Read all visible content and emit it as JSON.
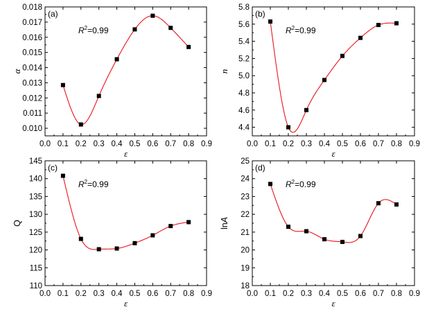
{
  "chart_data": [
    {
      "type": "scatter",
      "panel": "(a)",
      "annotation_prefix": "R",
      "annotation_sup": "2",
      "annotation_suffix": "=0.99",
      "xlabel": "ε",
      "ylabel": "α",
      "xlim": [
        0.0,
        0.9
      ],
      "ylim": [
        0.0095,
        0.018
      ],
      "xticks": [
        "0.0",
        "0.1",
        "0.2",
        "0.3",
        "0.4",
        "0.5",
        "0.6",
        "0.7",
        "0.8",
        "0.9"
      ],
      "yticks": [
        "0.010",
        "0.011",
        "0.012",
        "0.013",
        "0.014",
        "0.015",
        "0.016",
        "0.017",
        "0.018"
      ],
      "x": [
        0.1,
        0.2,
        0.3,
        0.4,
        0.5,
        0.6,
        0.7,
        0.8
      ],
      "y": [
        0.01285,
        0.01025,
        0.01213,
        0.01455,
        0.01652,
        0.01742,
        0.01662,
        0.01536
      ],
      "fit_color": "#e8141b",
      "marker_color": "#000000"
    },
    {
      "type": "scatter",
      "panel": "(b)",
      "annotation_prefix": "R",
      "annotation_sup": "2",
      "annotation_suffix": "=0.99",
      "xlabel": "ε",
      "ylabel": "n",
      "xlim": [
        0.0,
        0.9
      ],
      "ylim": [
        4.3,
        5.8
      ],
      "xticks": [
        "0.0",
        "0.1",
        "0.2",
        "0.3",
        "0.4",
        "0.5",
        "0.6",
        "0.7",
        "0.8",
        "0.9"
      ],
      "yticks": [
        "4.4",
        "4.6",
        "4.8",
        "5.0",
        "5.2",
        "5.4",
        "5.6",
        "5.8"
      ],
      "x": [
        0.1,
        0.2,
        0.3,
        0.4,
        0.5,
        0.6,
        0.7,
        0.8
      ],
      "y": [
        5.63,
        4.4,
        4.6,
        4.95,
        5.23,
        5.44,
        5.59,
        5.61
      ],
      "fit_color": "#e8141b",
      "marker_color": "#000000"
    },
    {
      "type": "scatter",
      "panel": "(c)",
      "annotation_prefix": "R",
      "annotation_sup": "2",
      "annotation_suffix": "=0.99",
      "xlabel": "ε",
      "ylabel": "Q",
      "xlim": [
        0.0,
        0.9
      ],
      "ylim": [
        110,
        145
      ],
      "xticks": [
        "0.0",
        "0.1",
        "0.2",
        "0.3",
        "0.4",
        "0.5",
        "0.6",
        "0.7",
        "0.8",
        "0.9"
      ],
      "yticks": [
        "110",
        "115",
        "120",
        "125",
        "130",
        "135",
        "140",
        "145"
      ],
      "x": [
        0.1,
        0.2,
        0.3,
        0.4,
        0.5,
        0.6,
        0.7,
        0.8
      ],
      "y": [
        140.8,
        123.1,
        120.2,
        120.4,
        121.9,
        124.1,
        126.7,
        127.8
      ],
      "fit_color": "#e8141b",
      "marker_color": "#000000"
    },
    {
      "type": "scatter",
      "panel": "(d)",
      "annotation_prefix": "R",
      "annotation_sup": "2",
      "annotation_suffix": "=0.99",
      "xlabel": "ε",
      "ylabel": "lnA",
      "xlim": [
        0.0,
        0.9
      ],
      "ylim": [
        18,
        25
      ],
      "xticks": [
        "0.0",
        "0.1",
        "0.2",
        "0.3",
        "0.4",
        "0.5",
        "0.6",
        "0.7",
        "0.8",
        "0.9"
      ],
      "yticks": [
        "18",
        "19",
        "20",
        "21",
        "22",
        "23",
        "24",
        "25"
      ],
      "x": [
        0.1,
        0.2,
        0.3,
        0.4,
        0.5,
        0.6,
        0.7,
        0.8
      ],
      "y": [
        23.7,
        21.3,
        21.05,
        20.6,
        20.45,
        20.78,
        22.62,
        22.55
      ],
      "fit_color": "#e8141b",
      "marker_color": "#000000"
    }
  ]
}
